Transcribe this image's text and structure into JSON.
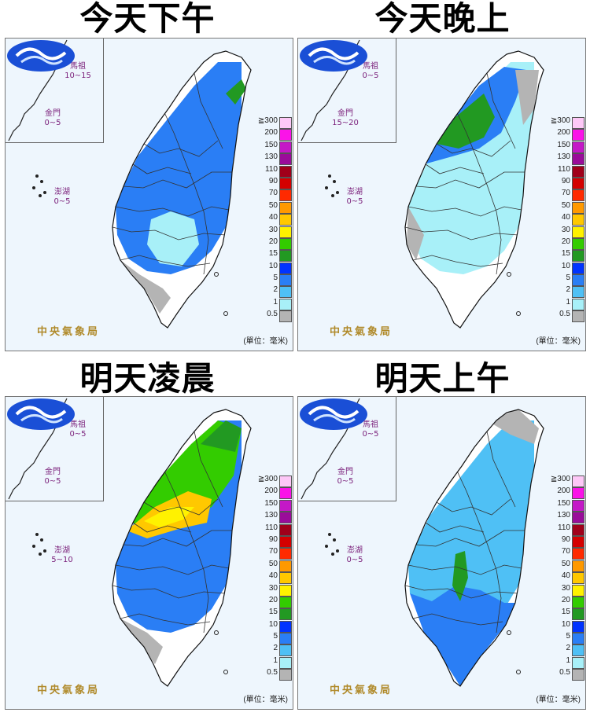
{
  "panels": [
    {
      "title": "今天下午",
      "islands": {
        "mazu": {
          "name": "馬祖",
          "value": "10~15"
        },
        "kinmen": {
          "name": "金門",
          "value": "0~5"
        },
        "penghu": {
          "name": "澎湖",
          "value": "0~5"
        }
      },
      "dominant_rain": "blue",
      "heavy_zone": "none"
    },
    {
      "title": "今天晚上",
      "islands": {
        "mazu": {
          "name": "馬祖",
          "value": "0~5"
        },
        "kinmen": {
          "name": "金門",
          "value": "15~20"
        },
        "penghu": {
          "name": "澎湖",
          "value": "0~5"
        }
      },
      "dominant_rain": "lightblue",
      "heavy_zone": "north-green"
    },
    {
      "title": "明天凌晨",
      "islands": {
        "mazu": {
          "name": "馬祖",
          "value": "0~5"
        },
        "kinmen": {
          "name": "金門",
          "value": "0~5"
        },
        "penghu": {
          "name": "澎湖",
          "value": "5~10"
        }
      },
      "dominant_rain": "blue",
      "heavy_zone": "central-yellow"
    },
    {
      "title": "明天上午",
      "islands": {
        "mazu": {
          "name": "馬祖",
          "value": "0~5"
        },
        "kinmen": {
          "name": "金門",
          "value": "0~5"
        },
        "penghu": {
          "name": "澎湖",
          "value": "0~5"
        }
      },
      "dominant_rain": "blue",
      "heavy_zone": "central-green"
    }
  ],
  "legend": {
    "levels": [
      {
        "label": "≧300",
        "color": "#fdc8f7"
      },
      {
        "label": "200",
        "color": "#fa14e8"
      },
      {
        "label": "150",
        "color": "#c418c7"
      },
      {
        "label": "130",
        "color": "#9a0c9a"
      },
      {
        "label": "110",
        "color": "#a0001a"
      },
      {
        "label": "90",
        "color": "#d40000"
      },
      {
        "label": "70",
        "color": "#ff2a00"
      },
      {
        "label": "50",
        "color": "#ff9900"
      },
      {
        "label": "40",
        "color": "#ffc800"
      },
      {
        "label": "30",
        "color": "#fff200"
      },
      {
        "label": "20",
        "color": "#33cc00"
      },
      {
        "label": "15",
        "color": "#229922"
      },
      {
        "label": "10",
        "color": "#0033ff"
      },
      {
        "label": "5",
        "color": "#2a7ef5"
      },
      {
        "label": "2",
        "color": "#4fc0f5"
      },
      {
        "label": "1",
        "color": "#a8f0f8"
      },
      {
        "label": "0.5",
        "color": "#b4b4b4"
      }
    ],
    "unit": "(單位：毫米)"
  },
  "logo_text": "中央氣象局"
}
